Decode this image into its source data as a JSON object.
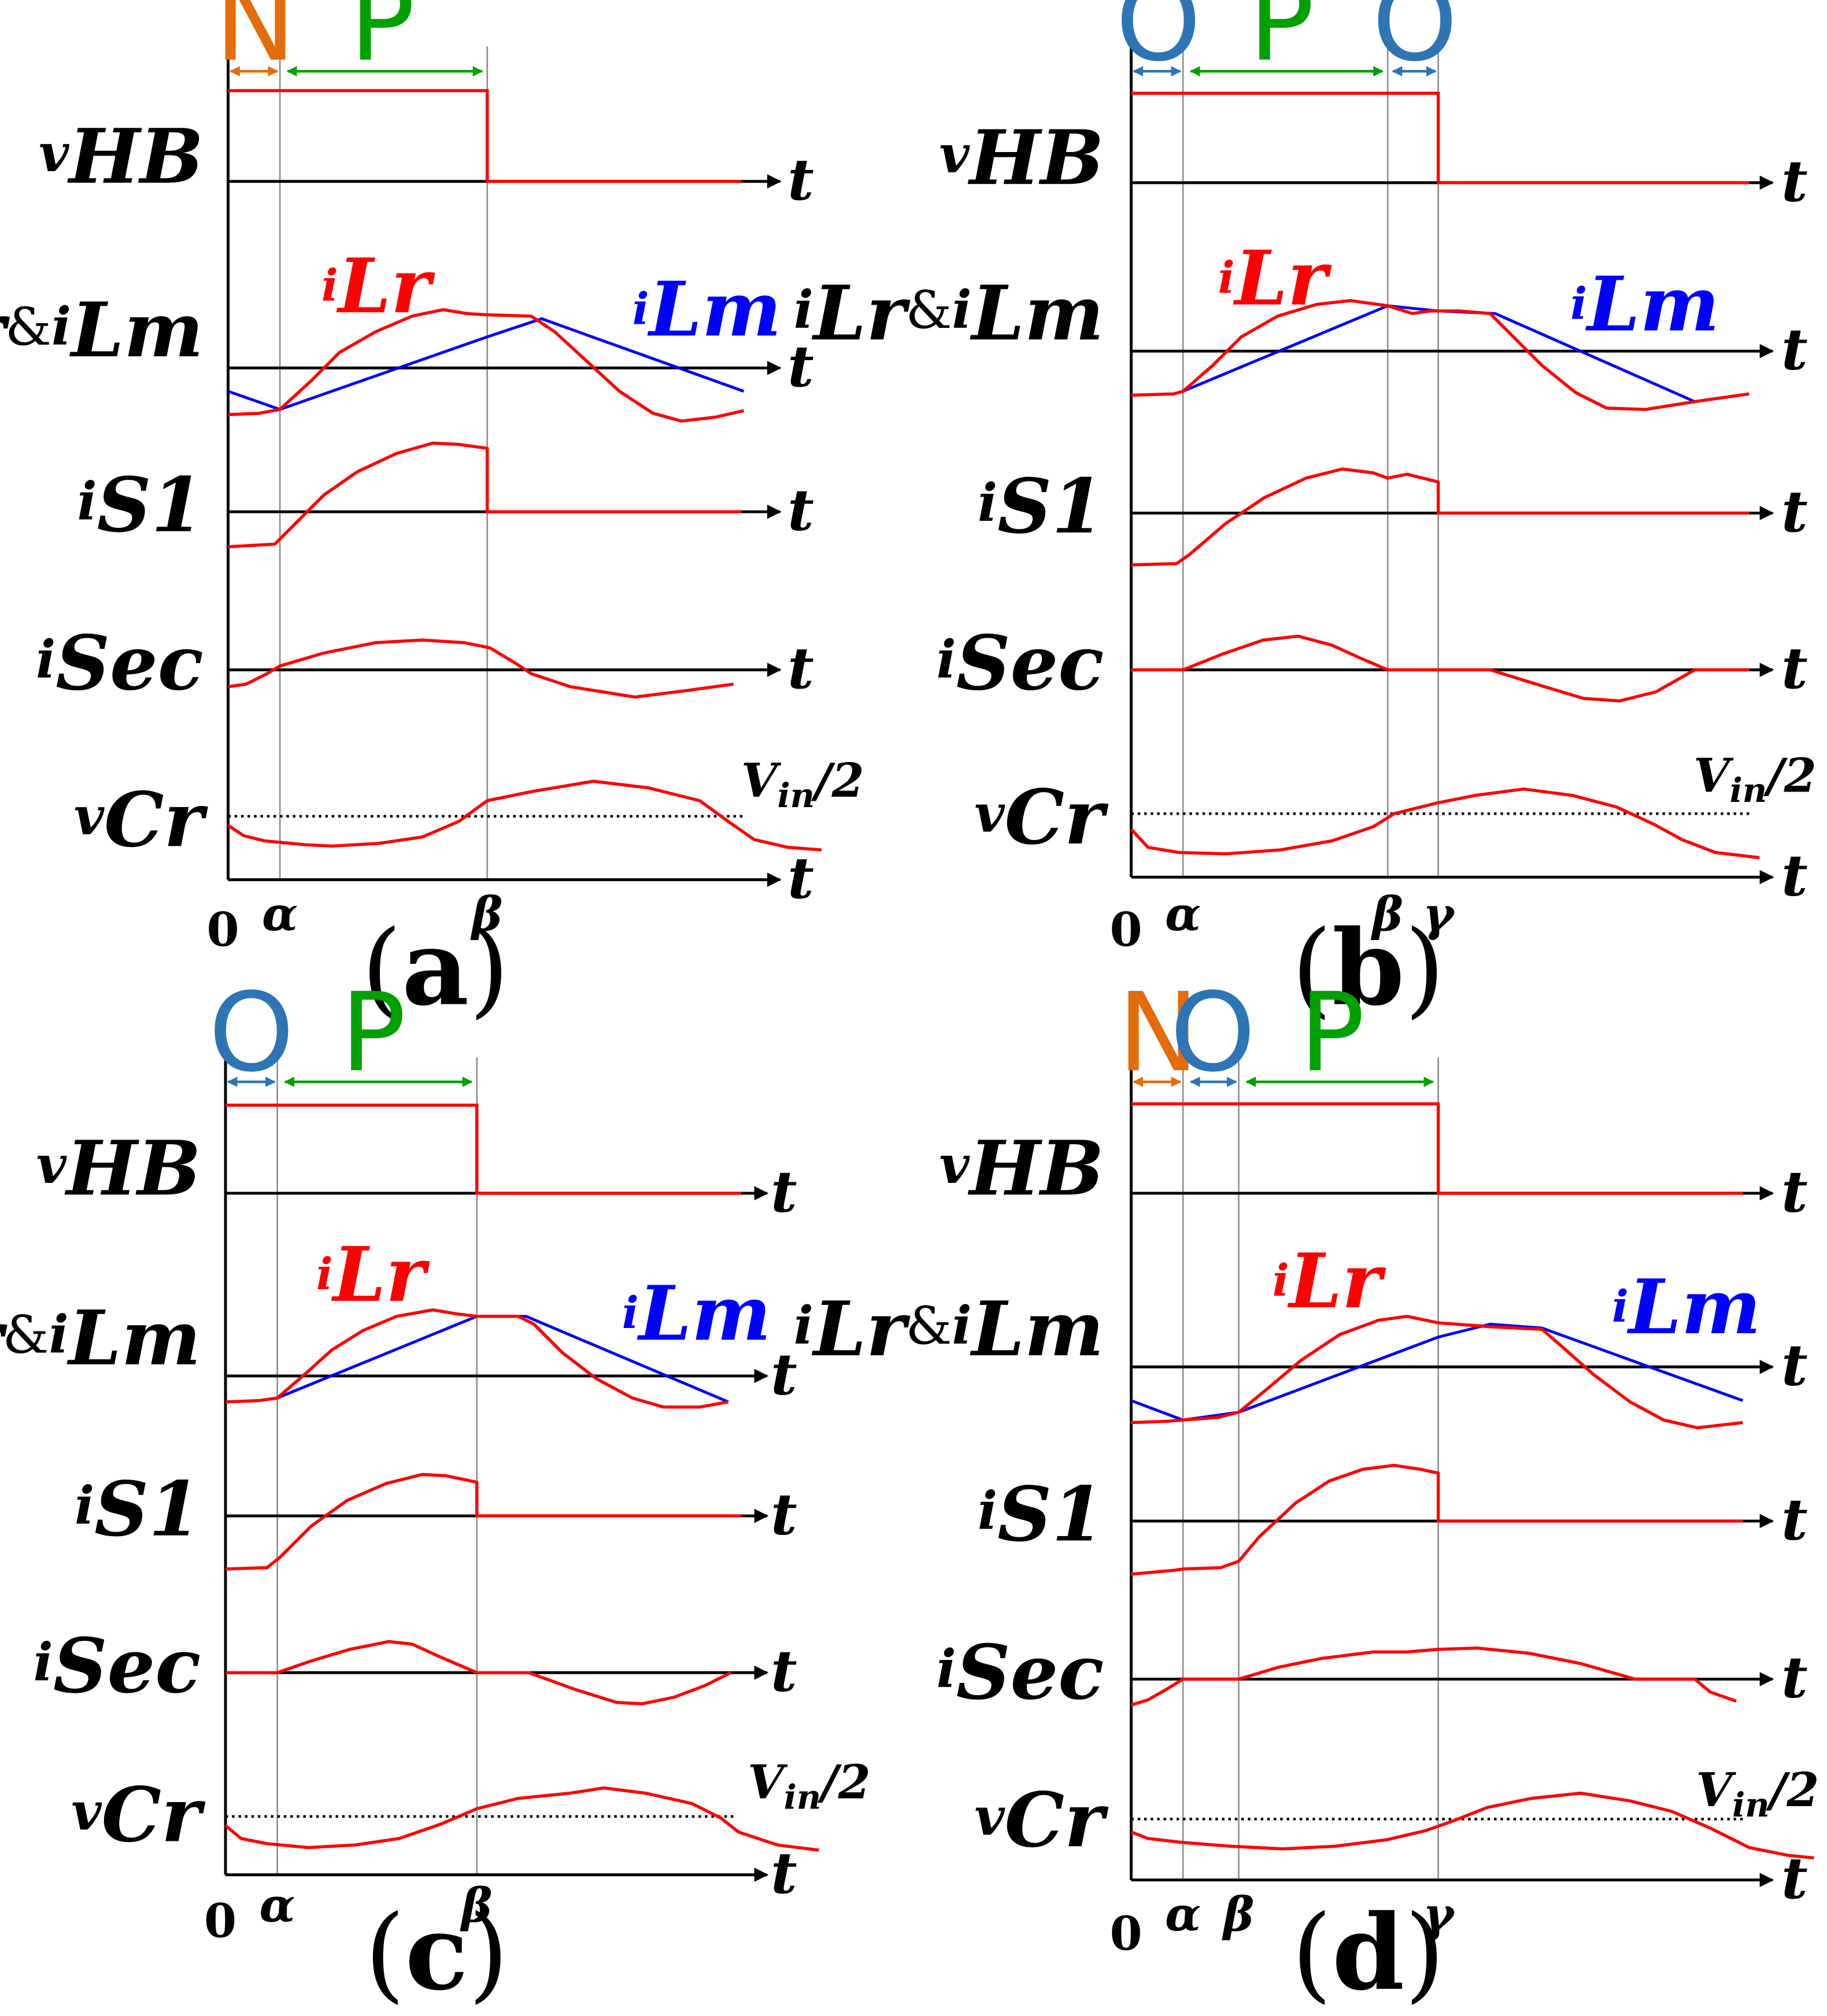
{
  "figure": {
    "colors": {
      "axis": "#000000",
      "ilr_trace": "#ff0000",
      "ilm_trace": "#0000ff",
      "phase_n": "#e46c0a",
      "phase_o": "#2e75b6",
      "phase_p": "#00a000",
      "marker_line": "#909090",
      "dotted": "#000000"
    },
    "time_symbol": "t",
    "origin_label": "0",
    "signals": {
      "vhb": {
        "main": "v",
        "sub": "HB"
      },
      "ilr_ilm": {
        "main1": "i",
        "sub1": "Lr",
        "amp": "&",
        "main2": "i",
        "sub2": "Lm"
      },
      "is1": {
        "main": "i",
        "sub": "S1"
      },
      "isec": {
        "main": "i",
        "sub": "Sec"
      },
      "vcr": {
        "main": "v",
        "sub": "Cr"
      }
    },
    "trace_labels": {
      "ilr": {
        "main": "i",
        "sub": "Lr"
      },
      "ilm": {
        "main": "i",
        "sub": "Lm"
      }
    },
    "vin_label": {
      "main": "V",
      "sub": "in",
      "tail": "/2"
    },
    "panels": [
      {
        "caption": {
          "open": "(",
          "letter": "a",
          "close": ")"
        },
        "phases": [
          {
            "label": "N",
            "kind": "N"
          },
          {
            "label": "P",
            "kind": "P"
          }
        ],
        "markers": [
          "α",
          "β"
        ]
      },
      {
        "caption": {
          "open": "(",
          "letter": "b",
          "close": ")"
        },
        "phases": [
          {
            "label": "O",
            "kind": "O"
          },
          {
            "label": "P",
            "kind": "P"
          },
          {
            "label": "O",
            "kind": "O"
          }
        ],
        "markers": [
          "α",
          "β",
          "γ"
        ]
      },
      {
        "caption": {
          "open": "(",
          "letter": "c",
          "close": ")"
        },
        "phases": [
          {
            "label": "O",
            "kind": "O"
          },
          {
            "label": "P",
            "kind": "P"
          }
        ],
        "markers": [
          "α",
          "β"
        ]
      },
      {
        "caption": {
          "open": "(",
          "letter": "d",
          "close": ")"
        },
        "phases": [
          {
            "label": "N",
            "kind": "N"
          },
          {
            "label": "O",
            "kind": "O"
          },
          {
            "label": "P",
            "kind": "P"
          }
        ],
        "markers": [
          "α",
          "β",
          "γ"
        ]
      }
    ]
  }
}
